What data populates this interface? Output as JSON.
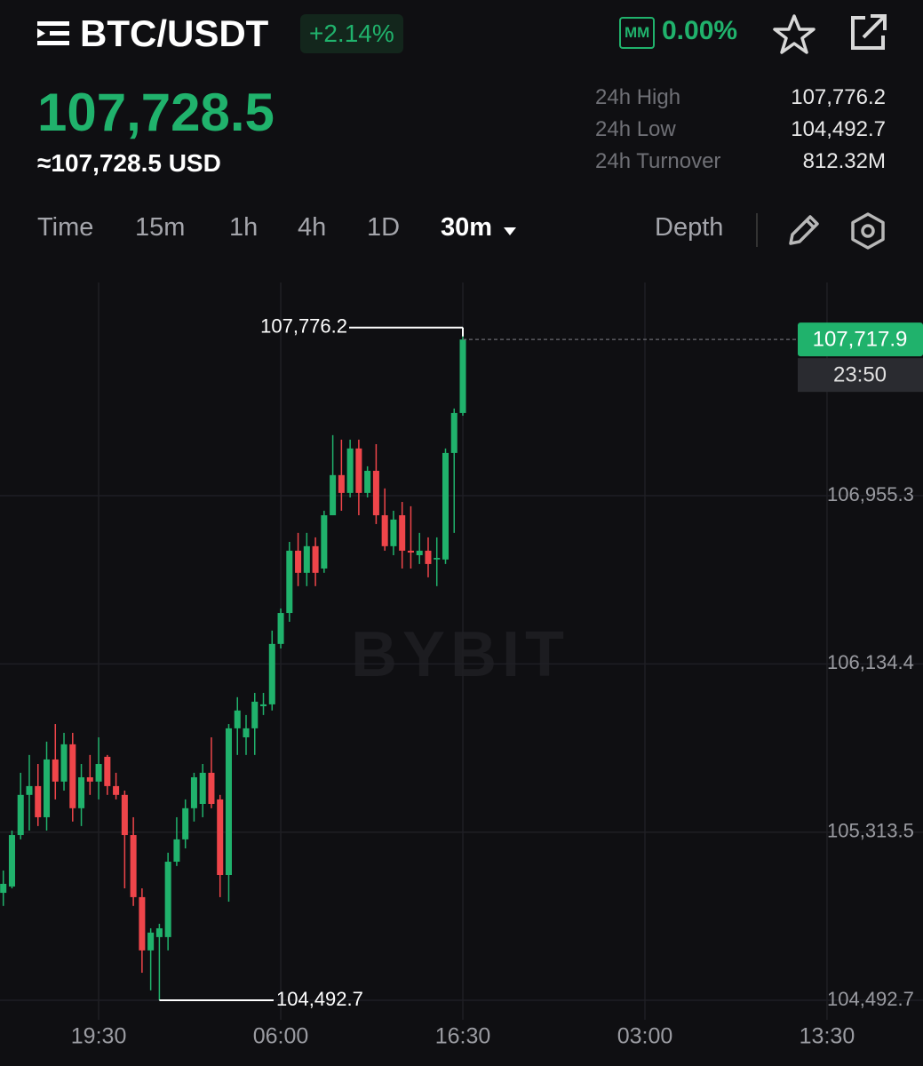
{
  "header": {
    "symbol": "BTC/USDT",
    "change": "+2.14%",
    "mm_badge": "MM",
    "mm_value": "0.00%",
    "price": "107,728.5",
    "price_usd": "≈107,728.5 USD",
    "stats": [
      {
        "label": "24h High",
        "value": "107,776.2"
      },
      {
        "label": "24h Low",
        "value": "104,492.7"
      },
      {
        "label": "24h Turnover",
        "value": "812.32M"
      }
    ],
    "tabs": [
      "Time",
      "15m",
      "1h",
      "4h",
      "1D",
      "30m",
      "Depth"
    ]
  },
  "chart_data": {
    "type": "candlestick",
    "watermark": "BYBIT",
    "up_color": "#20b26c",
    "down_color": "#ef454a",
    "grid": true,
    "x": [
      0,
      1,
      2,
      3,
      4,
      5,
      6,
      7,
      8,
      9,
      10,
      11,
      12,
      13,
      14,
      15,
      16,
      17,
      18,
      19,
      20,
      21,
      22,
      23,
      24,
      25,
      26,
      27,
      28,
      29,
      30,
      31,
      32,
      33,
      34,
      35,
      36,
      37,
      38,
      39,
      40,
      41,
      42,
      43,
      44,
      45,
      46,
      47,
      48,
      49,
      50,
      51,
      52,
      53
    ],
    "open": [
      105017,
      105048,
      105299,
      105495,
      105538,
      105386,
      105668,
      105560,
      105742,
      105430,
      105581,
      105560,
      105681,
      105538,
      105495,
      105299,
      104996,
      104736,
      104801,
      104801,
      105169,
      105278,
      105430,
      105451,
      105603,
      105473,
      105104,
      105820,
      105776,
      105820,
      105928,
      105937,
      106232,
      106383,
      106687,
      106579,
      106709,
      106600,
      106860,
      107056,
      106969,
      107186,
      106969,
      107077,
      106860,
      106709,
      106860,
      106687,
      106665,
      106687,
      106644,
      106644,
      107164,
      107359
    ],
    "high": [
      105126,
      105321,
      105603,
      105690,
      105646,
      105755,
      105841,
      105798,
      105798,
      105646,
      105690,
      105776,
      105690,
      105603,
      105516,
      105386,
      105039,
      104844,
      104866,
      105213,
      105386,
      105473,
      105603,
      105646,
      105776,
      105495,
      105841,
      105972,
      105885,
      105993,
      105993,
      106297,
      106405,
      106730,
      106774,
      106774,
      106752,
      106882,
      107251,
      107229,
      107229,
      107229,
      107099,
      107207,
      106991,
      106882,
      106925,
      106904,
      106774,
      106752,
      106752,
      107186,
      107381,
      107776.2
    ],
    "low": [
      104953,
      105039,
      105278,
      105321,
      105343,
      105321,
      105473,
      105516,
      105365,
      105343,
      105495,
      105473,
      105495,
      105473,
      105039,
      104953,
      104627,
      104541,
      104492.7,
      104736,
      105148,
      105234,
      105365,
      105386,
      105430,
      104996,
      104974,
      105690,
      105690,
      105690,
      105885,
      105907,
      106210,
      106340,
      106514,
      106514,
      106514,
      106579,
      106860,
      106882,
      106947,
      106860,
      106947,
      106817,
      106687,
      106665,
      106600,
      106600,
      106622,
      106557,
      106514,
      106622,
      106774,
      107346
    ],
    "close": [
      105061,
      105299,
      105495,
      105538,
      105386,
      105668,
      105560,
      105742,
      105430,
      105581,
      105560,
      105646,
      105538,
      105495,
      105299,
      104996,
      104736,
      104823,
      104844,
      105169,
      105278,
      105430,
      105581,
      105603,
      105451,
      105104,
      105820,
      105907,
      105820,
      105950,
      105937,
      106232,
      106383,
      106687,
      106579,
      106709,
      106579,
      106860,
      107056,
      106969,
      107186,
      106969,
      107077,
      106860,
      106709,
      106839,
      106687,
      106678,
      106687,
      106622,
      106652,
      107164,
      107359,
      107717.9
    ],
    "xlim": [
      -0.38,
      106.07
    ],
    "xticks": [
      {
        "value": 11,
        "label": "19:30"
      },
      {
        "value": 32,
        "label": "06:00"
      },
      {
        "value": 53,
        "label": "16:30"
      },
      {
        "value": 74,
        "label": "03:00"
      },
      {
        "value": 95,
        "label": "13:30"
      }
    ],
    "ylim": [
      104397.3,
      107996.1
    ],
    "yticks": [
      {
        "value": 104492.7,
        "label": "104,492.7"
      },
      {
        "value": 105313.5,
        "label": "105,313.5"
      },
      {
        "value": 106134.4,
        "label": "106,134.4"
      },
      {
        "value": 106955.3,
        "label": "106,955.3"
      }
    ],
    "high_marker": {
      "value": 107776.2,
      "label": "107,776.2"
    },
    "low_marker": {
      "value": 104492.7,
      "label": "104,492.7"
    },
    "last_price": {
      "value": 107717.9,
      "label": "107,717.9"
    },
    "countdown": "23:50"
  }
}
